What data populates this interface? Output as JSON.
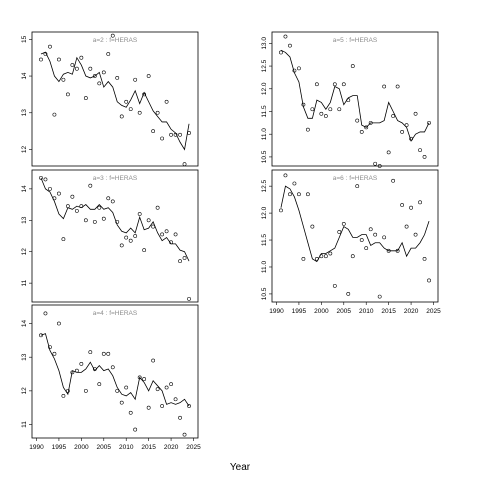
{
  "colors": {
    "axis": "#000000",
    "panel_title": "#8c8c8c",
    "points": "#000000",
    "line": "#000000"
  },
  "chart_data": {
    "type": "scatter",
    "xlabel": "Year",
    "x_ticks": [
      1990,
      1995,
      2000,
      2005,
      2010,
      2015,
      2020,
      2025
    ],
    "x_ticklabels": [
      "1990",
      "1995",
      "2000",
      "2005",
      "2010",
      "2015",
      "2020",
      "2025"
    ],
    "xlim": [
      1989,
      2026
    ],
    "years": [
      1991,
      1992,
      1993,
      1994,
      1995,
      1996,
      1997,
      1998,
      1999,
      2000,
      2001,
      2002,
      2003,
      2004,
      2005,
      2006,
      2007,
      2008,
      2009,
      2010,
      2011,
      2012,
      2013,
      2014,
      2015,
      2016,
      2017,
      2018,
      2019,
      2020,
      2021,
      2022,
      2023,
      2024
    ],
    "panels": [
      {
        "id": "a2",
        "title": "a=2 : f=HERAS",
        "ylim": [
          11.55,
          15.2
        ],
        "y_ticks": [
          12,
          13,
          14,
          15
        ],
        "y_ticklabels": [
          "12",
          "13",
          "14",
          "15"
        ],
        "observed": [
          14.45,
          14.6,
          14.8,
          12.95,
          14.45,
          13.9,
          13.5,
          14.3,
          14.2,
          14.5,
          13.4,
          14.2,
          14.0,
          13.8,
          14.1,
          14.6,
          15.1,
          13.95,
          12.9,
          13.3,
          13.1,
          13.9,
          13.0,
          13.5,
          14.0,
          12.5,
          13.0,
          12.3,
          13.3,
          12.4,
          12.4,
          12.4,
          11.6,
          12.45
        ],
        "fitted": [
          14.6,
          14.65,
          14.4,
          14.0,
          13.85,
          14.05,
          14.1,
          14.05,
          14.5,
          14.3,
          14.0,
          13.95,
          14.0,
          14.1,
          13.7,
          13.85,
          13.7,
          13.3,
          13.2,
          13.15,
          13.35,
          13.6,
          13.25,
          13.55,
          13.3,
          13.05,
          12.9,
          12.75,
          12.75,
          12.55,
          12.45,
          12.2,
          12.0,
          12.7
        ]
      },
      {
        "id": "a3",
        "title": "a=3 : f=HERAS",
        "ylim": [
          10.4,
          14.6
        ],
        "y_ticks": [
          11,
          12,
          13,
          14
        ],
        "y_ticklabels": [
          "11",
          "12",
          "13",
          "14"
        ],
        "observed": [
          14.35,
          14.3,
          14.0,
          13.7,
          13.85,
          12.4,
          13.45,
          13.75,
          13.3,
          13.45,
          13.0,
          14.1,
          12.95,
          13.4,
          13.05,
          13.7,
          13.6,
          12.95,
          12.2,
          12.45,
          12.35,
          12.5,
          13.2,
          12.05,
          13.0,
          12.8,
          13.4,
          12.55,
          12.65,
          12.3,
          12.55,
          11.7,
          11.8,
          10.5
        ],
        "fitted": [
          14.35,
          14.0,
          13.9,
          13.6,
          13.2,
          13.05,
          13.4,
          13.35,
          13.45,
          13.4,
          13.5,
          13.35,
          13.35,
          13.5,
          13.35,
          13.4,
          13.25,
          12.85,
          12.65,
          12.6,
          12.75,
          12.6,
          13.1,
          12.7,
          12.75,
          12.95,
          12.6,
          12.35,
          12.45,
          12.25,
          12.25,
          12.05,
          12.0,
          11.7
        ]
      },
      {
        "id": "a4",
        "title": "a=4 : f=HERAS",
        "ylim": [
          10.6,
          14.55
        ],
        "y_ticks": [
          11,
          12,
          13,
          14
        ],
        "y_ticklabels": [
          "11",
          "12",
          "13",
          "14"
        ],
        "observed": [
          13.65,
          14.3,
          13.3,
          13.1,
          14.0,
          11.85,
          12.0,
          12.55,
          12.6,
          12.8,
          12.0,
          13.15,
          12.65,
          12.2,
          13.1,
          13.1,
          12.7,
          12.0,
          11.65,
          12.1,
          11.35,
          10.85,
          12.4,
          12.35,
          11.5,
          12.9,
          12.05,
          11.55,
          12.1,
          12.2,
          11.75,
          11.2,
          10.7,
          11.55
        ],
        "fitted": [
          13.65,
          13.7,
          13.2,
          12.95,
          12.6,
          12.1,
          11.9,
          12.6,
          12.55,
          12.55,
          12.65,
          12.85,
          12.6,
          12.75,
          12.6,
          12.65,
          12.45,
          12.1,
          11.9,
          11.85,
          11.95,
          11.75,
          12.4,
          12.25,
          12.0,
          12.3,
          12.15,
          12.0,
          11.6,
          11.65,
          11.6,
          11.65,
          11.75,
          11.55
        ]
      },
      {
        "id": "a5",
        "title": "a=5 : f=HERAS",
        "ylim": [
          10.3,
          13.25
        ],
        "y_ticks": [
          10.5,
          11.0,
          11.5,
          12.0,
          12.5,
          13.0
        ],
        "y_ticklabels": [
          "10.5",
          "11.0",
          "11.5",
          "12.0",
          "12.5",
          "13.0"
        ],
        "observed": [
          12.8,
          13.15,
          12.95,
          12.4,
          12.45,
          11.65,
          11.1,
          11.55,
          12.1,
          11.45,
          11.4,
          11.55,
          12.1,
          11.55,
          12.1,
          11.75,
          12.5,
          11.3,
          11.05,
          11.15,
          11.25,
          10.35,
          10.3,
          12.05,
          10.6,
          11.4,
          12.05,
          11.05,
          11.2,
          10.9,
          11.45,
          10.65,
          10.5,
          11.25
        ],
        "fitted": [
          12.85,
          12.8,
          12.7,
          12.35,
          12.15,
          11.6,
          11.35,
          11.35,
          11.75,
          11.7,
          11.55,
          11.7,
          12.05,
          12.0,
          11.65,
          11.8,
          11.85,
          11.85,
          11.2,
          11.15,
          11.25,
          11.25,
          11.25,
          11.3,
          11.7,
          11.5,
          11.3,
          11.25,
          11.15,
          10.85,
          11.0,
          11.05,
          11.05,
          11.25
        ]
      },
      {
        "id": "a6",
        "title": "a=6 : f=HERAS",
        "ylim": [
          10.35,
          12.8
        ],
        "y_ticks": [
          10.5,
          11.0,
          11.5,
          12.0,
          12.5
        ],
        "y_ticklabels": [
          "10.5",
          "11.0",
          "11.5",
          "12.0",
          "12.5"
        ],
        "observed": [
          12.05,
          12.7,
          12.35,
          12.55,
          12.35,
          11.15,
          12.35,
          11.75,
          11.15,
          11.2,
          11.2,
          11.25,
          10.65,
          11.65,
          11.8,
          10.5,
          11.2,
          12.5,
          11.5,
          11.35,
          11.7,
          11.6,
          10.45,
          11.55,
          11.3,
          12.6,
          11.3,
          12.15,
          11.75,
          12.1,
          11.6,
          12.2,
          11.15,
          10.75
        ],
        "fitted": [
          12.1,
          12.5,
          12.45,
          12.3,
          12.05,
          11.75,
          11.45,
          11.15,
          11.1,
          11.25,
          11.25,
          11.3,
          11.35,
          11.55,
          11.75,
          11.7,
          11.55,
          11.55,
          11.6,
          11.6,
          11.4,
          11.45,
          11.45,
          11.35,
          11.3,
          11.3,
          11.3,
          11.45,
          11.2,
          11.35,
          11.35,
          11.45,
          11.6,
          11.85
        ]
      }
    ]
  }
}
